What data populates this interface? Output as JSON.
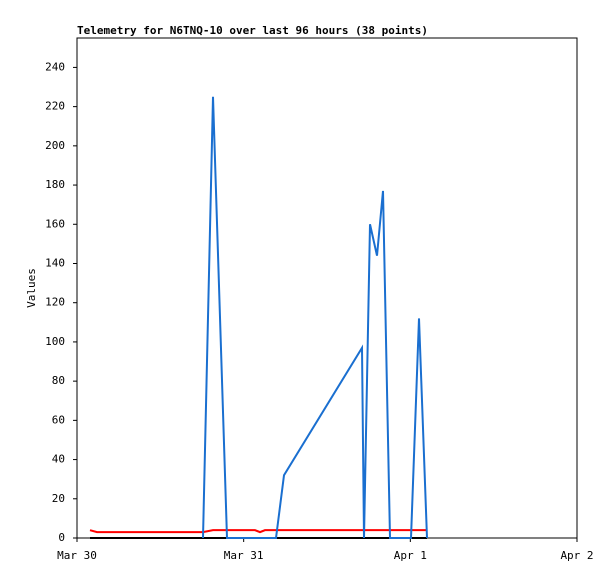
{
  "chart_data": {
    "type": "line",
    "title": "Telemetry for N6TNQ-10 over last 96 hours (38 points)",
    "y_label": "Values",
    "xlim": [
      0,
      3
    ],
    "xticks": [
      {
        "value": 0,
        "label": "Mar 30"
      },
      {
        "value": 1,
        "label": "Mar 31"
      },
      {
        "value": 2,
        "label": "Apr 1"
      },
      {
        "value": 3,
        "label": "Apr 2"
      }
    ],
    "ylim": [
      0,
      255
    ],
    "yticks": [
      0,
      20,
      40,
      60,
      80,
      100,
      120,
      140,
      160,
      180,
      200,
      220,
      240
    ],
    "series": [
      {
        "color": "#000000",
        "x": [
          0.078,
          2.1
        ],
        "values": [
          0,
          0
        ]
      },
      {
        "color": "#ff0000",
        "x": [
          0.078,
          0.12,
          0.756,
          0.816,
          1.068,
          1.098,
          1.128,
          2.1
        ],
        "values": [
          4,
          3,
          3,
          4,
          4,
          3,
          4,
          4
        ]
      },
      {
        "color": "#1a6fd0",
        "x": [
          0.756,
          0.816,
          0.9,
          1.194,
          1.242,
          1.71,
          1.722,
          1.758,
          1.8,
          1.836,
          1.878,
          2.004,
          2.052,
          2.1
        ],
        "values": [
          0,
          225,
          0,
          0,
          32,
          97,
          0,
          160,
          144,
          177,
          0,
          0,
          112,
          0
        ]
      }
    ]
  }
}
